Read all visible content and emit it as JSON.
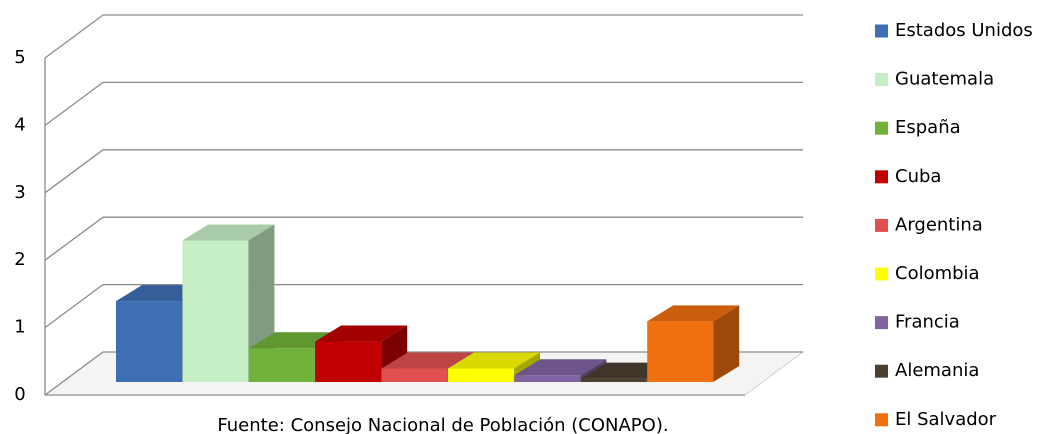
{
  "chart_data": {
    "type": "bar3d",
    "categories": [
      "Estados Unidos",
      "Guatemala",
      "España",
      "Cuba",
      "Argentina",
      "Colombia",
      "Francia",
      "Alemania",
      "El Salvador"
    ],
    "series": [
      {
        "name": "Estados Unidos",
        "color": "#3e6fb5"
      },
      {
        "name": "Guatemala",
        "color": "#c6efc6"
      },
      {
        "name": "España",
        "color": "#70b23a"
      },
      {
        "name": "Cuba",
        "color": "#c00000"
      },
      {
        "name": "Argentina",
        "color": "#e05050"
      },
      {
        "name": "Colombia",
        "color": "#ffff00"
      },
      {
        "name": "Francia",
        "color": "#8064a2"
      },
      {
        "name": "Alemania",
        "color": "#4a4030"
      },
      {
        "name": "El Salvador",
        "color": "#f07010"
      }
    ],
    "values": [
      1.2,
      2.1,
      0.5,
      0.6,
      0.2,
      0.2,
      0.1,
      0.05,
      0.9
    ],
    "ylim": [
      0,
      5
    ],
    "yticks": [
      0,
      1,
      2,
      3,
      4,
      5
    ],
    "grid": true,
    "source": "Fuente: Consejo Nacional de Población (CONAPO)."
  }
}
